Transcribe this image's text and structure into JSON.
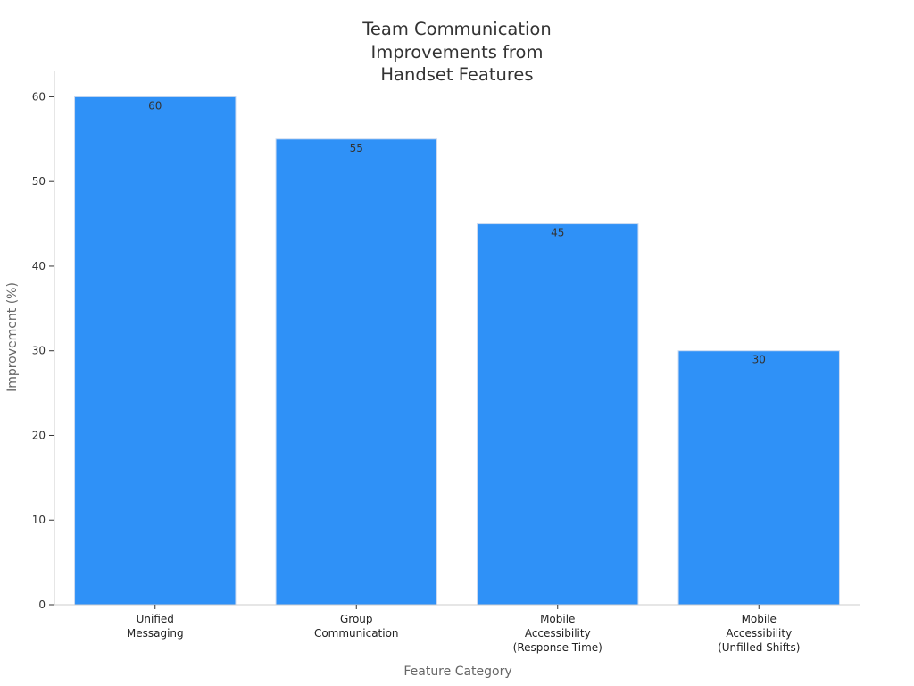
{
  "chart_data": {
    "type": "bar",
    "title": "Team Communication Improvements from Handset Features",
    "xlabel": "Feature Category",
    "ylabel": "Improvement (%)",
    "categories": [
      [
        "Unified",
        "Messaging"
      ],
      [
        "Group",
        "Communication"
      ],
      [
        "Mobile",
        "Accessibility",
        "(Response Time)"
      ],
      [
        "Mobile",
        "Accessibility",
        "(Unfilled Shifts)"
      ]
    ],
    "values": [
      60,
      55,
      45,
      30
    ],
    "ylim": [
      0,
      63
    ],
    "yticks": [
      0,
      10,
      20,
      30,
      40,
      50,
      60
    ],
    "bar_color": "#2f91f7",
    "grid": false,
    "legend": "none"
  }
}
